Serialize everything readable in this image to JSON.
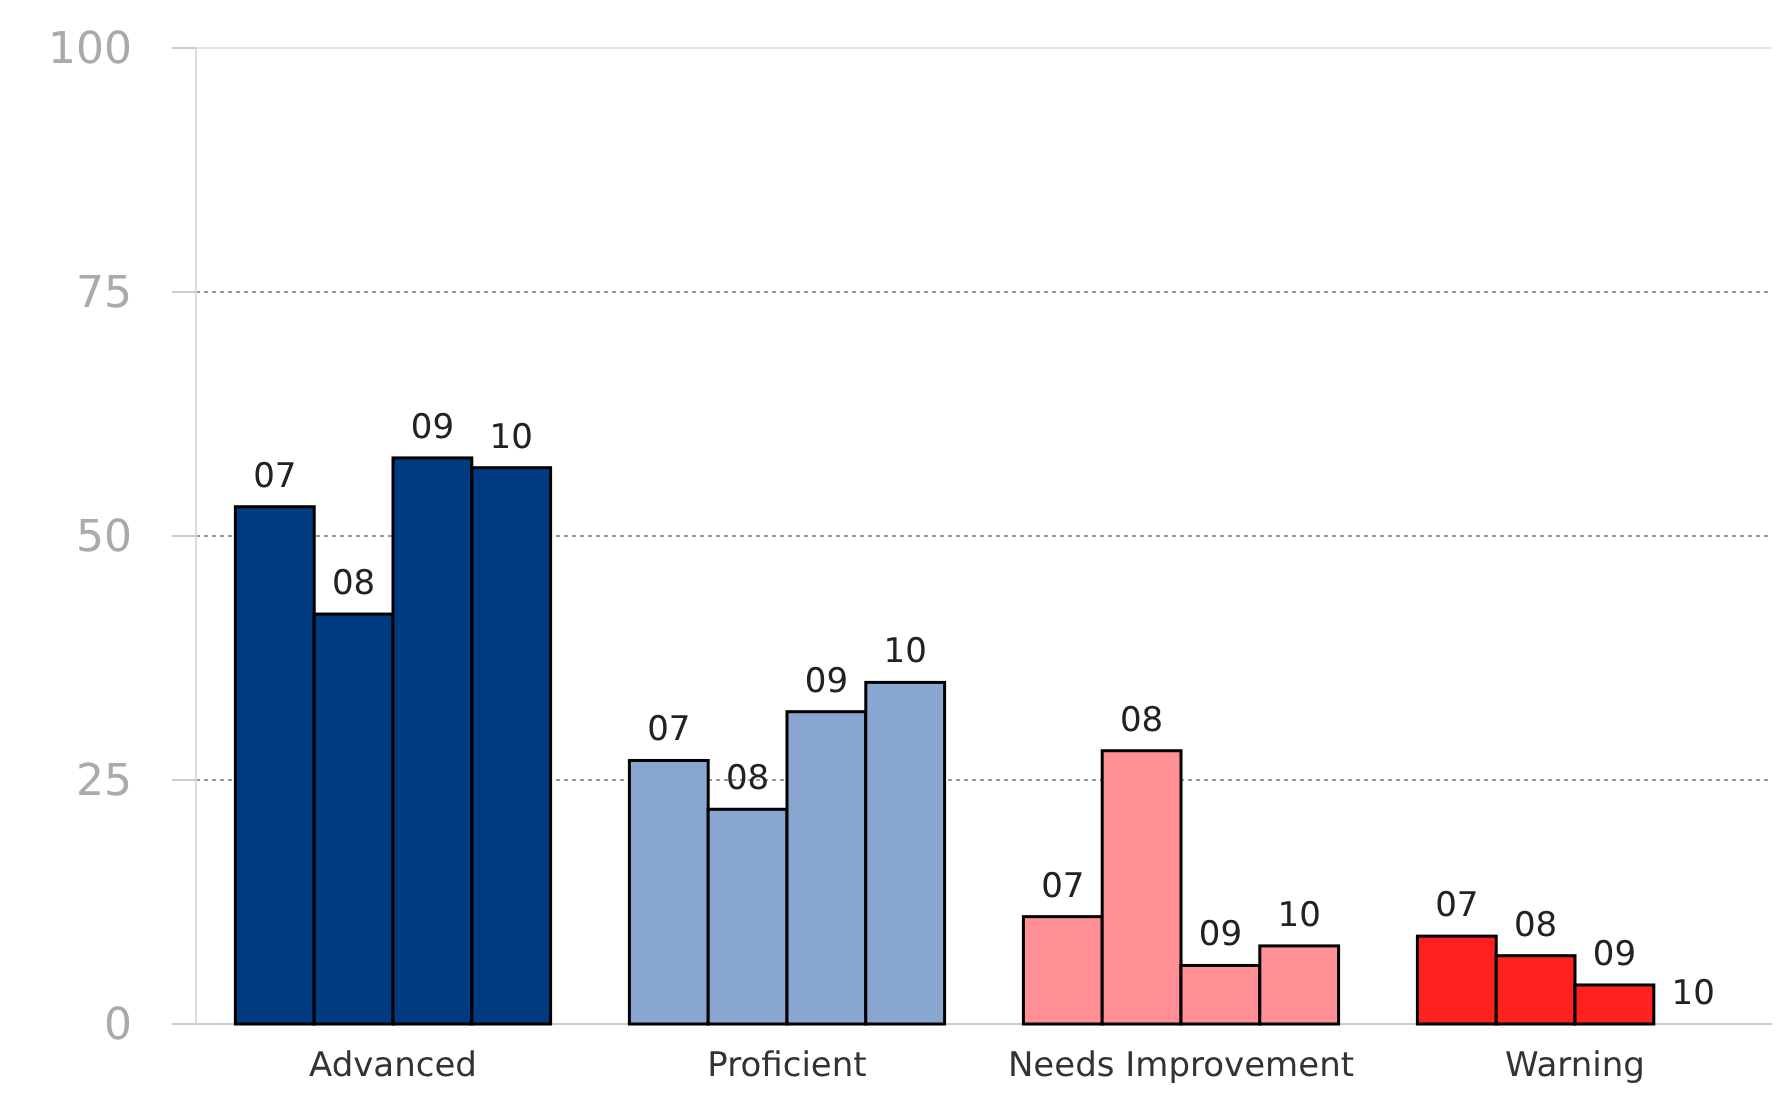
{
  "chart_data": {
    "type": "bar",
    "categories": [
      "Advanced",
      "Proficient",
      "Needs Improvement",
      "Warning"
    ],
    "series": [
      {
        "name": "07",
        "colors": [
          "#003a80",
          "#88a6d0",
          "#ff9096",
          "#ff2020"
        ],
        "values": [
          53,
          27,
          11,
          9
        ]
      },
      {
        "name": "08",
        "colors": [
          "#003a80",
          "#88a6d0",
          "#ff9096",
          "#ff2020"
        ],
        "values": [
          42,
          22,
          28,
          7
        ]
      },
      {
        "name": "09",
        "colors": [
          "#003a80",
          "#88a6d0",
          "#ff9096",
          "#ff2020"
        ],
        "values": [
          58,
          32,
          6,
          4
        ]
      },
      {
        "name": "10",
        "colors": [
          "#003a80",
          "#88a6d0",
          "#ff9096",
          "#ff2020"
        ],
        "values": [
          57,
          35,
          8,
          0
        ]
      }
    ],
    "ylim": [
      0,
      100
    ],
    "yticks": [
      0,
      25,
      50,
      75,
      100
    ],
    "grid": "y"
  }
}
